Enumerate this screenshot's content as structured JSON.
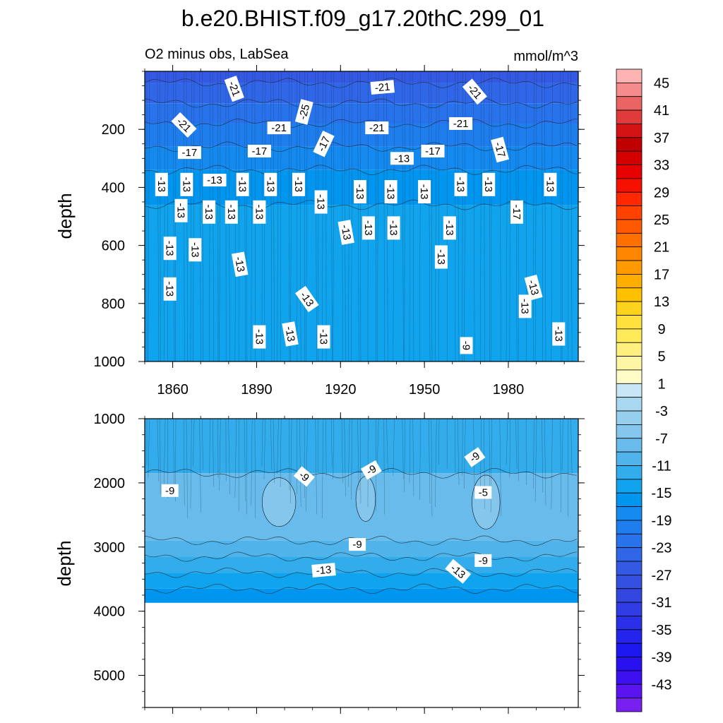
{
  "title": "b.e20.BHIST.f09_g17.20thC.299_01",
  "chart_data": [
    {
      "type": "heatmap",
      "panel": "upper",
      "subtitle_left": "O2 minus obs, LabSea",
      "subtitle_right": "mmol/m^3",
      "ylabel": "depth",
      "xlim": [
        1850,
        2005
      ],
      "ylim": [
        0,
        1000
      ],
      "y_inverted": true,
      "y_ticks": [
        200,
        400,
        600,
        800,
        1000
      ],
      "y_tick_labels": [
        "200",
        "400",
        "600",
        "800",
        "1000"
      ],
      "x_ticks": [
        1860,
        1890,
        1920,
        1950,
        1980
      ],
      "x_tick_labels": [
        "1860",
        "1890",
        "1920",
        "1950",
        "1980"
      ],
      "depth_bands": [
        {
          "top": 0,
          "bottom": 40,
          "value": -25
        },
        {
          "top": 40,
          "bottom": 110,
          "value": -23
        },
        {
          "top": 110,
          "bottom": 180,
          "value": -21
        },
        {
          "top": 180,
          "bottom": 260,
          "value": -19
        },
        {
          "top": 260,
          "bottom": 340,
          "value": -17
        },
        {
          "top": 340,
          "bottom": 460,
          "value": -15
        },
        {
          "top": 460,
          "bottom": 1000,
          "value": -13
        }
      ],
      "contour_labels": [
        {
          "x": 1882,
          "y": 60,
          "text": "-21",
          "rot": 70
        },
        {
          "x": 1935,
          "y": 55,
          "text": "-21",
          "rot": -5
        },
        {
          "x": 1968,
          "y": 70,
          "text": "-21",
          "rot": 50
        },
        {
          "x": 1907,
          "y": 140,
          "text": "-25",
          "rot": -75
        },
        {
          "x": 1864,
          "y": 185,
          "text": "-21",
          "rot": 45
        },
        {
          "x": 1898,
          "y": 195,
          "text": "-21",
          "rot": 0
        },
        {
          "x": 1933,
          "y": 195,
          "text": "-21",
          "rot": 0
        },
        {
          "x": 1963,
          "y": 180,
          "text": "-21",
          "rot": 0
        },
        {
          "x": 1866,
          "y": 280,
          "text": "-17",
          "rot": 0
        },
        {
          "x": 1891,
          "y": 275,
          "text": "-17",
          "rot": 0
        },
        {
          "x": 1914,
          "y": 250,
          "text": "-17",
          "rot": -65
        },
        {
          "x": 1953,
          "y": 275,
          "text": "-17",
          "rot": 0
        },
        {
          "x": 1977,
          "y": 270,
          "text": "-17",
          "rot": 75
        },
        {
          "x": 1942,
          "y": 300,
          "text": "-13",
          "rot": 0
        },
        {
          "x": 1856,
          "y": 390,
          "text": "-13",
          "rot": 90
        },
        {
          "x": 1865,
          "y": 390,
          "text": "-13",
          "rot": 90
        },
        {
          "x": 1875,
          "y": 375,
          "text": "-13",
          "rot": 0
        },
        {
          "x": 1885,
          "y": 390,
          "text": "-13",
          "rot": 90
        },
        {
          "x": 1895,
          "y": 390,
          "text": "-13",
          "rot": 90
        },
        {
          "x": 1905,
          "y": 390,
          "text": "-13",
          "rot": 90
        },
        {
          "x": 1913,
          "y": 450,
          "text": "-13",
          "rot": 90
        },
        {
          "x": 1927,
          "y": 415,
          "text": "-13",
          "rot": 90
        },
        {
          "x": 1938,
          "y": 415,
          "text": "-13",
          "rot": 90
        },
        {
          "x": 1950,
          "y": 415,
          "text": "-13",
          "rot": 90
        },
        {
          "x": 1963,
          "y": 390,
          "text": "-13",
          "rot": 90
        },
        {
          "x": 1973,
          "y": 390,
          "text": "-13",
          "rot": 90
        },
        {
          "x": 1995,
          "y": 390,
          "text": "-13",
          "rot": 90
        },
        {
          "x": 1863,
          "y": 480,
          "text": "-13",
          "rot": 90
        },
        {
          "x": 1873,
          "y": 485,
          "text": "-13",
          "rot": 90
        },
        {
          "x": 1881,
          "y": 485,
          "text": "-13",
          "rot": 90
        },
        {
          "x": 1891,
          "y": 485,
          "text": "-13",
          "rot": 90
        },
        {
          "x": 1983,
          "y": 485,
          "text": "-17",
          "rot": 90
        },
        {
          "x": 1922,
          "y": 555,
          "text": "-13",
          "rot": 80
        },
        {
          "x": 1930,
          "y": 540,
          "text": "-13",
          "rot": 90
        },
        {
          "x": 1939,
          "y": 540,
          "text": "-13",
          "rot": 90
        },
        {
          "x": 1959,
          "y": 540,
          "text": "-13",
          "rot": 90
        },
        {
          "x": 1859,
          "y": 610,
          "text": "-13",
          "rot": 90
        },
        {
          "x": 1868,
          "y": 615,
          "text": "-13",
          "rot": 90
        },
        {
          "x": 1956,
          "y": 640,
          "text": "-13",
          "rot": 90
        },
        {
          "x": 1884,
          "y": 665,
          "text": "-13",
          "rot": 80
        },
        {
          "x": 1859,
          "y": 750,
          "text": "-13",
          "rot": 90
        },
        {
          "x": 1989,
          "y": 745,
          "text": "-13",
          "rot": 75
        },
        {
          "x": 1908,
          "y": 785,
          "text": "-13",
          "rot": 55
        },
        {
          "x": 1986,
          "y": 810,
          "text": "-13",
          "rot": 90
        },
        {
          "x": 1891,
          "y": 915,
          "text": "-13",
          "rot": 90
        },
        {
          "x": 1902,
          "y": 905,
          "text": "-13",
          "rot": 80
        },
        {
          "x": 1914,
          "y": 915,
          "text": "-13",
          "rot": 90
        },
        {
          "x": 1965,
          "y": 945,
          "text": "-9",
          "rot": 90
        },
        {
          "x": 1998,
          "y": 905,
          "text": "-13",
          "rot": 90
        }
      ]
    },
    {
      "type": "heatmap",
      "panel": "lower",
      "ylabel": "depth",
      "xlim": [
        1850,
        2005
      ],
      "ylim": [
        1000,
        5500
      ],
      "y_inverted": true,
      "data_bottom_depth": 3870,
      "y_ticks": [
        1000,
        2000,
        3000,
        4000,
        5000
      ],
      "y_tick_labels": [
        "1000",
        "2000",
        "3000",
        "4000",
        "5000"
      ],
      "depth_bands": [
        {
          "top": 1000,
          "bottom": 1850,
          "value": -11
        },
        {
          "top": 1850,
          "bottom": 2900,
          "value": -7
        },
        {
          "top": 2900,
          "bottom": 3150,
          "value": -9
        },
        {
          "top": 3150,
          "bottom": 3400,
          "value": -11
        },
        {
          "top": 3400,
          "bottom": 3650,
          "value": -13
        },
        {
          "top": 3650,
          "bottom": 3870,
          "value": -15
        }
      ],
      "anomaly_patches": [
        {
          "x": 1898,
          "y": 2300,
          "rx": 6,
          "ry": 380,
          "value": -5
        },
        {
          "x": 1929,
          "y": 2250,
          "rx": 3.5,
          "ry": 350,
          "value": -5
        },
        {
          "x": 1972,
          "y": 2300,
          "rx": 5,
          "ry": 420,
          "value": -5
        }
      ],
      "contour_labels": [
        {
          "x": 1859,
          "y": 2120,
          "text": "-9",
          "rot": 0
        },
        {
          "x": 1907,
          "y": 1900,
          "text": "-9",
          "rot": 40
        },
        {
          "x": 1931,
          "y": 1800,
          "text": "-9",
          "rot": -30
        },
        {
          "x": 1968,
          "y": 1600,
          "text": "-9",
          "rot": -35
        },
        {
          "x": 1971,
          "y": 2150,
          "text": "-5",
          "rot": 0
        },
        {
          "x": 1926,
          "y": 2960,
          "text": "-9",
          "rot": 0
        },
        {
          "x": 1971,
          "y": 3210,
          "text": "-9",
          "rot": 0
        },
        {
          "x": 1914,
          "y": 3360,
          "text": "-13",
          "rot": -5
        },
        {
          "x": 1962,
          "y": 3380,
          "text": "-13",
          "rot": 40
        }
      ]
    },
    {
      "type": "colorbar",
      "tick_labels": [
        "45",
        "41",
        "37",
        "33",
        "29",
        "25",
        "21",
        "17",
        "13",
        "9",
        "5",
        "1",
        "-3",
        "-7",
        "-11",
        "-15",
        "-19",
        "-23",
        "-27",
        "-31",
        "-35",
        "-39",
        "-43"
      ],
      "levels_top_to_bottom": [
        47,
        45,
        43,
        41,
        39,
        37,
        35,
        33,
        31,
        29,
        27,
        25,
        23,
        21,
        19,
        17,
        15,
        13,
        11,
        9,
        7,
        5,
        3,
        1,
        -1,
        -3,
        -5,
        -7,
        -9,
        -11,
        -13,
        -15,
        -17,
        -19,
        -21,
        -23,
        -25,
        -27,
        -29,
        -31,
        -33,
        -35,
        -37,
        -39,
        -41,
        -43,
        -45
      ],
      "colors_top_to_bottom": [
        "#ffb4b4",
        "#f58c8c",
        "#eb6464",
        "#e03a3a",
        "#d41414",
        "#c00000",
        "#d40000",
        "#e60000",
        "#f51000",
        "#ff2800",
        "#ff4200",
        "#ff5a00",
        "#ff7000",
        "#ff8600",
        "#ff9a00",
        "#ffae00",
        "#ffc000",
        "#ffd21e",
        "#ffe03c",
        "#ffea5a",
        "#fff080",
        "#fff6a5",
        "#fffcc8",
        "#c8e6f5",
        "#a8d8f0",
        "#96cfee",
        "#84c6ec",
        "#68bbea",
        "#50b4ea",
        "#32aceb",
        "#10a4ee",
        "#0096f0",
        "#148af0",
        "#1e7eee",
        "#2872ec",
        "#3066e8",
        "#345ae4",
        "#3450e0",
        "#3446e0",
        "#303ce4",
        "#2a30e8",
        "#2424ec",
        "#1e18f0",
        "#2810f0",
        "#3c10f0",
        "#5a14f0",
        "#7820f0"
      ]
    }
  ]
}
